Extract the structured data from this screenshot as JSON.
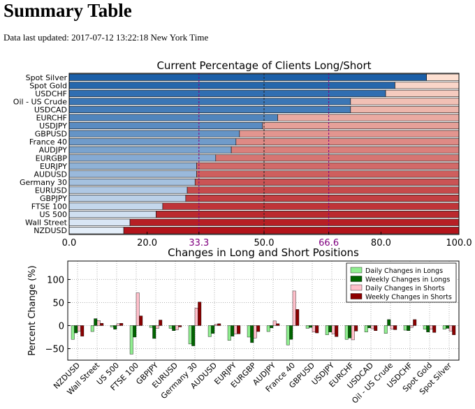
{
  "page": {
    "title": "Summary Table",
    "updated_label": "Data last updated:",
    "updated_value": "2017-07-12 13:22:18 New York Time"
  },
  "chart_data": [
    {
      "type": "bar",
      "orientation": "horizontal",
      "stacked": true,
      "title": "Current Percentage of Clients Long/Short",
      "categories": [
        "Spot Silver",
        "Spot Gold",
        "USDCHF",
        "Oil - US Crude",
        "USDCAD",
        "EURCHF",
        "USDJPY",
        "GBPUSD",
        "France 40",
        "AUDJPY",
        "EURGBP",
        "EURJPY",
        "AUDUSD",
        "Germany 30",
        "EURUSD",
        "GBPJPY",
        "FTSE 100",
        "US 500",
        "Wall Street",
        "NZDUSD"
      ],
      "series": [
        {
          "values": [
            91.7,
            83.6,
            81.2,
            72.2,
            72.2,
            53.5,
            49.6,
            43.7,
            42.8,
            41.6,
            37.6,
            32.7,
            32.7,
            32.3,
            30.3,
            29.9,
            24.0,
            22.3,
            15.6,
            14.0
          ]
        },
        {
          "values": [
            8.3,
            16.4,
            18.8,
            27.8,
            27.8,
            46.5,
            50.4,
            56.3,
            57.2,
            58.4,
            62.4,
            67.3,
            67.3,
            67.7,
            69.7,
            70.1,
            76.0,
            77.7,
            84.4,
            86.0
          ]
        }
      ],
      "xlim": [
        0,
        100
      ],
      "xticks": [
        "0.0",
        "20.0",
        "33.3",
        "50.0",
        "66.6",
        "80.0",
        "100.0"
      ],
      "xtick_values": [
        0,
        20,
        33.3,
        50,
        66.6,
        80,
        100
      ],
      "reference_lines": [
        33.3,
        50,
        66.6
      ],
      "colors": {
        "long": "#2f74b5",
        "short": "#e8412e",
        "reference": "#800080"
      }
    },
    {
      "type": "bar",
      "title": "Changes in Long and Short Positions",
      "ylabel": "Percent Change (%)",
      "ylim": [
        -75,
        140
      ],
      "yticks": [
        "−50",
        "0",
        "50",
        "100"
      ],
      "ytick_values": [
        -50,
        0,
        50,
        100
      ],
      "grid": true,
      "legend_position": "top-right",
      "categories": [
        "NZDUSD",
        "Wall Street",
        "US 500",
        "FTSE 100",
        "GBPJPY",
        "EURUSD",
        "Germany 30",
        "AUDUSD",
        "EURJPY",
        "EURGBP",
        "AUDJPY",
        "France 40",
        "GBPUSD",
        "USDJPY",
        "EURCHF",
        "USDCAD",
        "Oil - US Crude",
        "USDCHF",
        "Spot Gold",
        "Spot Silver"
      ],
      "series": [
        {
          "name": "Daily Changes in Longs",
          "color": "#90ee90",
          "values": [
            -30,
            -13,
            -3,
            -62,
            -4,
            -6,
            -40,
            -24,
            -32,
            -25,
            -13,
            -42,
            -6,
            -20,
            -30,
            -14,
            -17,
            -10,
            -8,
            -8
          ]
        },
        {
          "name": "Weekly Changes in Longs",
          "color": "#006400",
          "values": [
            -16,
            15,
            -8,
            -25,
            -28,
            -11,
            -44,
            -17,
            -23,
            -37,
            -5,
            -30,
            -4,
            -14,
            -27,
            -5,
            13,
            -11,
            -14,
            -6
          ]
        },
        {
          "name": "Daily Changes in Shorts",
          "color": "#ffc0cb",
          "values": [
            -12,
            11,
            4,
            71,
            -6,
            -9,
            38,
            3,
            -18,
            -27,
            10,
            75,
            -14,
            -18,
            -31,
            -7,
            -8,
            -4,
            -8,
            -12
          ]
        },
        {
          "name": "Weekly Changes in Shorts",
          "color": "#8b0000",
          "values": [
            -23,
            5,
            5,
            21,
            12,
            -3,
            51,
            4,
            -18,
            -13,
            4,
            35,
            -16,
            -24,
            -12,
            -11,
            -9,
            13,
            -15,
            -20
          ]
        }
      ]
    }
  ]
}
